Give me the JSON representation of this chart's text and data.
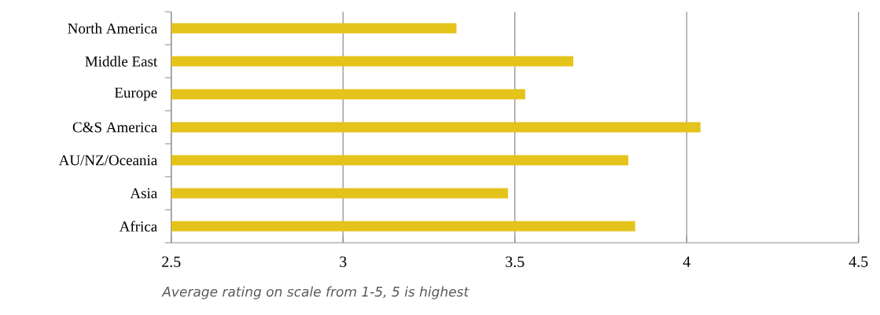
{
  "chart_data": {
    "type": "bar",
    "orientation": "horizontal",
    "categories": [
      "North America",
      "Middle East",
      "Europe",
      "C&S America",
      "AU/NZ/Oceania",
      "Asia",
      "Africa"
    ],
    "values": [
      3.33,
      3.67,
      3.53,
      4.04,
      3.83,
      3.48,
      3.85
    ],
    "color": "#e4c31a",
    "xlim": [
      2.5,
      4.5
    ],
    "xticks": [
      2.5,
      3,
      3.5,
      4,
      4.5
    ],
    "xlabel": "Average rating on scale from 1-5, 5 is highest",
    "grid": "x"
  }
}
